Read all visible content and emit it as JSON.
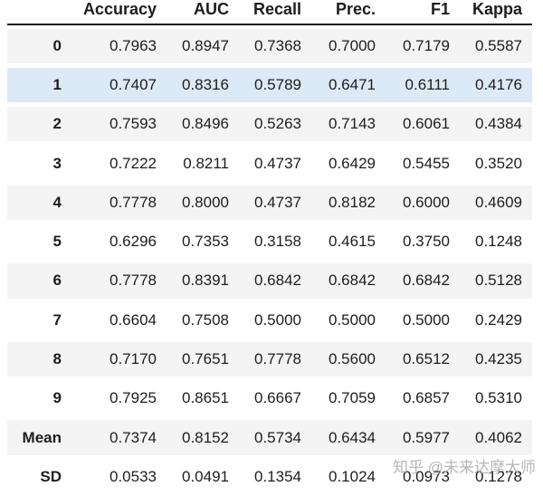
{
  "chart_data": {
    "type": "table",
    "title": "",
    "columns": [
      "Accuracy",
      "AUC",
      "Recall",
      "Prec.",
      "F1",
      "Kappa"
    ],
    "row_labels": [
      "0",
      "1",
      "2",
      "3",
      "4",
      "5",
      "6",
      "7",
      "8",
      "9",
      "Mean",
      "SD"
    ],
    "rows": [
      [
        0.7963,
        0.8947,
        0.7368,
        0.7,
        0.7179,
        0.5587
      ],
      [
        0.7407,
        0.8316,
        0.5789,
        0.6471,
        0.6111,
        0.4176
      ],
      [
        0.7593,
        0.8496,
        0.5263,
        0.7143,
        0.6061,
        0.4384
      ],
      [
        0.7222,
        0.8211,
        0.4737,
        0.6429,
        0.5455,
        0.352
      ],
      [
        0.7778,
        0.8,
        0.4737,
        0.8182,
        0.6,
        0.4609
      ],
      [
        0.6296,
        0.7353,
        0.3158,
        0.4615,
        0.375,
        0.1248
      ],
      [
        0.7778,
        0.8391,
        0.6842,
        0.6842,
        0.6842,
        0.5128
      ],
      [
        0.6604,
        0.7508,
        0.5,
        0.5,
        0.5,
        0.2429
      ],
      [
        0.717,
        0.7651,
        0.7778,
        0.56,
        0.6512,
        0.4235
      ],
      [
        0.7925,
        0.8651,
        0.6667,
        0.7059,
        0.6857,
        0.531
      ],
      [
        0.7374,
        0.8152,
        0.5734,
        0.6434,
        0.5977,
        0.4062
      ],
      [
        0.0533,
        0.0491,
        0.1354,
        0.1024,
        0.0973,
        0.1278
      ]
    ],
    "highlighted_row_label": "1",
    "layout": "striped rows; header separated by thick black rule"
  },
  "table": {
    "header": {
      "columns": [
        "Accuracy",
        "AUC",
        "Recall",
        "Prec.",
        "F1",
        "Kappa"
      ]
    },
    "rows": [
      {
        "label": "0",
        "values": [
          "0.7963",
          "0.8947",
          "0.7368",
          "0.7000",
          "0.7179",
          "0.5587"
        ]
      },
      {
        "label": "1",
        "values": [
          "0.7407",
          "0.8316",
          "0.5789",
          "0.6471",
          "0.6111",
          "0.4176"
        ]
      },
      {
        "label": "2",
        "values": [
          "0.7593",
          "0.8496",
          "0.5263",
          "0.7143",
          "0.6061",
          "0.4384"
        ]
      },
      {
        "label": "3",
        "values": [
          "0.7222",
          "0.8211",
          "0.4737",
          "0.6429",
          "0.5455",
          "0.3520"
        ]
      },
      {
        "label": "4",
        "values": [
          "0.7778",
          "0.8000",
          "0.4737",
          "0.8182",
          "0.6000",
          "0.4609"
        ]
      },
      {
        "label": "5",
        "values": [
          "0.6296",
          "0.7353",
          "0.3158",
          "0.4615",
          "0.3750",
          "0.1248"
        ]
      },
      {
        "label": "6",
        "values": [
          "0.7778",
          "0.8391",
          "0.6842",
          "0.6842",
          "0.6842",
          "0.5128"
        ]
      },
      {
        "label": "7",
        "values": [
          "0.6604",
          "0.7508",
          "0.5000",
          "0.5000",
          "0.5000",
          "0.2429"
        ]
      },
      {
        "label": "8",
        "values": [
          "0.7170",
          "0.7651",
          "0.7778",
          "0.5600",
          "0.6512",
          "0.4235"
        ]
      },
      {
        "label": "9",
        "values": [
          "0.7925",
          "0.8651",
          "0.6667",
          "0.7059",
          "0.6857",
          "0.5310"
        ]
      },
      {
        "label": "Mean",
        "values": [
          "0.7374",
          "0.8152",
          "0.5734",
          "0.6434",
          "0.5977",
          "0.4062"
        ]
      },
      {
        "label": "SD",
        "values": [
          "0.0533",
          "0.0491",
          "0.1354",
          "0.1024",
          "0.0973",
          "0.1278"
        ]
      }
    ]
  },
  "watermark": {
    "text": "知乎 @未来达摩大师"
  },
  "colors": {
    "stripe_gray": "#f4f4f5",
    "highlight_blue": "#dce9f7",
    "header_rule": "#1c1c1c",
    "text": "#1d1d1f",
    "watermark_gray": "#afafaf"
  }
}
